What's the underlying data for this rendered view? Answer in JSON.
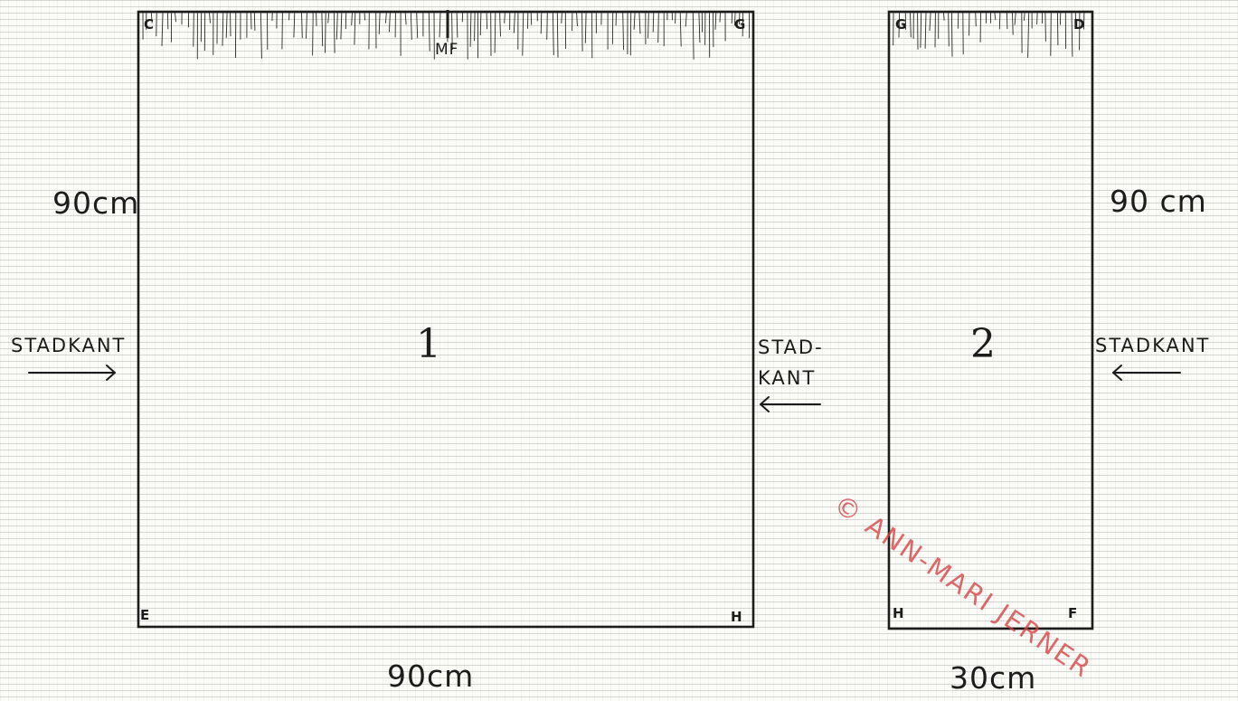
{
  "pieces": {
    "piece1": {
      "number": "1",
      "corners": {
        "top_left": "C",
        "top_right": "G",
        "bottom_left": "E",
        "bottom_right": "H"
      },
      "fold_mark": "MF",
      "height_label": "90cm",
      "width_label": "90cm",
      "left_edge_label": "STADKANT",
      "right_edge_label_line1": "STAD-",
      "right_edge_label_line2": "KANT"
    },
    "piece2": {
      "number": "2",
      "corners": {
        "top_left": "G",
        "top_right": "D",
        "bottom_left": "H",
        "bottom_right": "F"
      },
      "height_label": "90 cm",
      "width_label": "30cm",
      "right_edge_label": "STADKANT"
    }
  },
  "watermark": "© ANN-MARI JERNER",
  "colors": {
    "ink": "#1c1c1c",
    "paper": "#fbfbf8",
    "watermark": "#d64040"
  }
}
